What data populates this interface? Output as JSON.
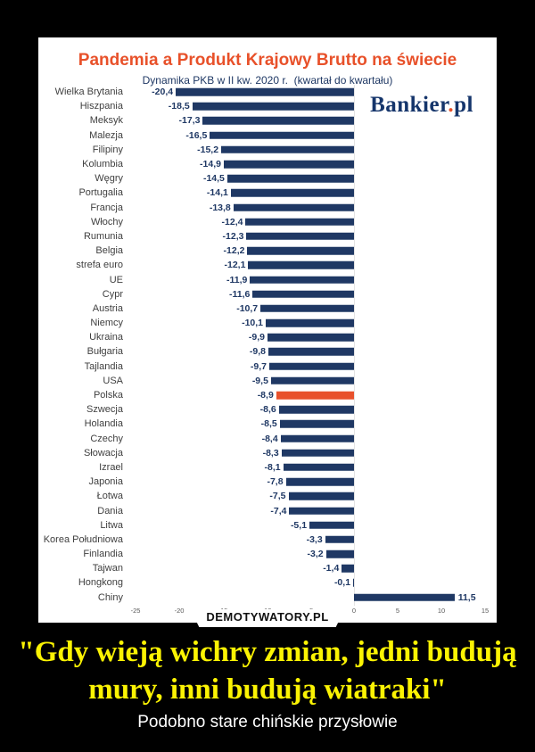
{
  "chart": {
    "title": "Pandemia a Produkt Krajowy Brutto na świecie",
    "subtitle": "Dynamika PKB w II kw. 2020 r.  (kwartał do kwartału)",
    "source_logo": {
      "name": "Bankier.pl",
      "part1": "Bankier",
      "dot": ".",
      "part2": "pl"
    }
  },
  "chart_data": {
    "type": "bar",
    "orientation": "horizontal",
    "title": "Pandemia a Produkt Krajowy Brutto na świecie",
    "subtitle": "Dynamika PKB w II kw. 2020 r. (kwartał do kwartału)",
    "categories": [
      "Wielka Brytania",
      "Hiszpania",
      "Meksyk",
      "Malezja",
      "Filipiny",
      "Kolumbia",
      "Węgry",
      "Portugalia",
      "Francja",
      "Włochy",
      "Rumunia",
      "Belgia",
      "strefa euro",
      "UE",
      "Cypr",
      "Austria",
      "Niemcy",
      "Ukraina",
      "Bułgaria",
      "Tajlandia",
      "USA",
      "Polska",
      "Szwecja",
      "Holandia",
      "Czechy",
      "Słowacja",
      "Izrael",
      "Japonia",
      "Łotwa",
      "Dania",
      "Litwa",
      "Korea Południowa",
      "Finlandia",
      "Tajwan",
      "Hongkong",
      "Chiny"
    ],
    "values": [
      -20.4,
      -18.5,
      -17.3,
      -16.5,
      -15.2,
      -14.9,
      -14.5,
      -14.1,
      -13.8,
      -12.4,
      -12.3,
      -12.2,
      -12.1,
      -11.9,
      -11.6,
      -10.7,
      -10.1,
      -9.9,
      -9.8,
      -9.7,
      -9.5,
      -8.9,
      -8.6,
      -8.5,
      -8.4,
      -8.3,
      -8.1,
      -7.8,
      -7.5,
      -7.4,
      -5.1,
      -3.3,
      -3.2,
      -1.4,
      -0.1,
      11.5
    ],
    "highlight_category": "Polska",
    "bar_color": "#1f3864",
    "highlight_color": "#e8512c",
    "value_label_color": "#1f3864",
    "xlim": [
      -25,
      15
    ],
    "x_ticks": [
      -25,
      -20,
      -15,
      -10,
      -5,
      0,
      5,
      10,
      15
    ],
    "decimal_separator": ",",
    "grid": "zero-axis-only",
    "legend": "none"
  },
  "watermark": "DEMOTYWATORY.PL",
  "caption": {
    "title": "\"Gdy wieją wichry zmian, jedni budują mury, inni budują wiatraki\"",
    "subtitle": "Podobno stare chińskie przysłowie"
  }
}
